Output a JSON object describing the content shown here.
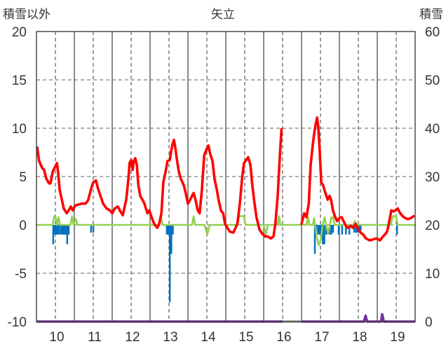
{
  "chart_data": {
    "type": "line",
    "title": "矢立",
    "ylabel": "積雪以外",
    "y2label": "積雪",
    "xlim": [
      9.5,
      19.5
    ],
    "ylim": [
      -10,
      20
    ],
    "y2lim": [
      0,
      60
    ],
    "x_ticks": [
      10,
      11,
      12,
      13,
      14,
      15,
      16,
      17,
      18,
      19
    ],
    "y_ticks": [
      20,
      15,
      10,
      5,
      0,
      -5,
      -10
    ],
    "y2_ticks": [
      60,
      50,
      40,
      30,
      20,
      10,
      0
    ],
    "grid": true,
    "series": [
      {
        "color": "#92d050",
        "points": [
          [
            9.5,
            0
          ],
          [
            9.93,
            0
          ],
          [
            9.97,
            0.9
          ],
          [
            10.0,
            0.9
          ],
          [
            10.04,
            0
          ],
          [
            10.08,
            0.8
          ],
          [
            10.12,
            0
          ],
          [
            10.4,
            0
          ],
          [
            10.44,
            0.9
          ],
          [
            10.48,
            0
          ],
          [
            10.54,
            0.6
          ],
          [
            10.58,
            0
          ],
          [
            12.75,
            0
          ],
          [
            12.79,
            0.9
          ],
          [
            12.83,
            0
          ],
          [
            13.61,
            0
          ],
          [
            13.65,
            0.9
          ],
          [
            13.69,
            0
          ],
          [
            13.94,
            0
          ],
          [
            14.01,
            -1.0
          ],
          [
            14.08,
            0
          ],
          [
            14.81,
            0
          ],
          [
            14.85,
            0.9
          ],
          [
            14.98,
            0.9
          ],
          [
            15.02,
            0
          ],
          [
            15.5,
            0
          ],
          [
            15.56,
            -1.0
          ],
          [
            15.61,
            0
          ],
          [
            15.87,
            0
          ],
          [
            15.91,
            0.9
          ],
          [
            15.94,
            0
          ],
          [
            16.63,
            0
          ],
          [
            16.67,
            0.8
          ],
          [
            16.71,
            0
          ],
          [
            16.8,
            0
          ],
          [
            16.83,
            0.7
          ],
          [
            16.86,
            0
          ],
          [
            16.9,
            -1.2
          ],
          [
            16.95,
            -2.1
          ],
          [
            17.01,
            -1.5
          ],
          [
            17.06,
            0
          ],
          [
            17.11,
            0.8
          ],
          [
            17.15,
            0
          ],
          [
            17.2,
            -0.9
          ],
          [
            17.25,
            0
          ],
          [
            17.29,
            0.8
          ],
          [
            17.33,
            0.8
          ],
          [
            17.38,
            0
          ],
          [
            17.88,
            0
          ],
          [
            17.91,
            0.4
          ],
          [
            17.94,
            0
          ],
          [
            18.86,
            0
          ],
          [
            18.91,
            0.9
          ],
          [
            19.0,
            0.9
          ],
          [
            19.04,
            0
          ],
          [
            19.5,
            0
          ]
        ]
      },
      {
        "color": "#ff0000",
        "points": [
          [
            9.52,
            8.0
          ],
          [
            9.57,
            6.6
          ],
          [
            9.65,
            5.9
          ],
          [
            9.7,
            5.7
          ],
          [
            9.76,
            4.8
          ],
          [
            9.83,
            4.3
          ],
          [
            9.87,
            4.3
          ],
          [
            9.93,
            5.5
          ],
          [
            9.98,
            5.9
          ],
          [
            10.04,
            6.4
          ],
          [
            10.07,
            5.5
          ],
          [
            10.11,
            3.7
          ],
          [
            10.17,
            2.6
          ],
          [
            10.22,
            1.7
          ],
          [
            10.3,
            1.2
          ],
          [
            10.35,
            1.5
          ],
          [
            10.41,
            1.9
          ],
          [
            10.46,
            1.5
          ],
          [
            10.52,
            2.0
          ],
          [
            10.61,
            2.1
          ],
          [
            10.7,
            2.2
          ],
          [
            10.8,
            2.2
          ],
          [
            10.87,
            2.6
          ],
          [
            10.94,
            3.7
          ],
          [
            11.0,
            4.4
          ],
          [
            11.07,
            4.6
          ],
          [
            11.13,
            3.7
          ],
          [
            11.19,
            3.0
          ],
          [
            11.26,
            2.2
          ],
          [
            11.35,
            1.7
          ],
          [
            11.44,
            1.5
          ],
          [
            11.5,
            1.2
          ],
          [
            11.57,
            1.7
          ],
          [
            11.65,
            1.9
          ],
          [
            11.7,
            1.5
          ],
          [
            11.78,
            1.0
          ],
          [
            11.83,
            1.9
          ],
          [
            11.87,
            2.6
          ],
          [
            11.93,
            4.8
          ],
          [
            11.96,
            6.4
          ],
          [
            12.0,
            6.7
          ],
          [
            12.04,
            5.7
          ],
          [
            12.07,
            6.6
          ],
          [
            12.11,
            6.9
          ],
          [
            12.15,
            6.2
          ],
          [
            12.19,
            4.1
          ],
          [
            12.24,
            3.0
          ],
          [
            12.3,
            2.6
          ],
          [
            12.35,
            2.2
          ],
          [
            12.43,
            1.2
          ],
          [
            12.48,
            1.5
          ],
          [
            12.54,
            0.8
          ],
          [
            12.61,
            0.1
          ],
          [
            12.69,
            -0.3
          ],
          [
            12.74,
            0.1
          ],
          [
            12.8,
            1.2
          ],
          [
            12.85,
            4.4
          ],
          [
            12.91,
            5.5
          ],
          [
            12.96,
            6.6
          ],
          [
            13.02,
            6.7
          ],
          [
            13.06,
            7.7
          ],
          [
            13.09,
            8.3
          ],
          [
            13.13,
            8.8
          ],
          [
            13.17,
            7.9
          ],
          [
            13.2,
            7.0
          ],
          [
            13.26,
            5.5
          ],
          [
            13.31,
            4.8
          ],
          [
            13.39,
            4.1
          ],
          [
            13.44,
            3.3
          ],
          [
            13.5,
            2.2
          ],
          [
            13.56,
            2.6
          ],
          [
            13.61,
            3.0
          ],
          [
            13.65,
            3.3
          ],
          [
            13.7,
            2.6
          ],
          [
            13.76,
            1.5
          ],
          [
            13.81,
            1.2
          ],
          [
            13.87,
            3.7
          ],
          [
            13.93,
            7.2
          ],
          [
            13.98,
            7.7
          ],
          [
            14.04,
            8.2
          ],
          [
            14.09,
            7.3
          ],
          [
            14.15,
            6.6
          ],
          [
            14.2,
            4.8
          ],
          [
            14.26,
            3.7
          ],
          [
            14.31,
            2.6
          ],
          [
            14.37,
            1.5
          ],
          [
            14.43,
            1.2
          ],
          [
            14.48,
            0.1
          ],
          [
            14.54,
            -0.3
          ],
          [
            14.61,
            -0.7
          ],
          [
            14.7,
            -0.8
          ],
          [
            14.76,
            -0.3
          ],
          [
            14.81,
            0.2
          ],
          [
            14.87,
            2.2
          ],
          [
            14.93,
            4.8
          ],
          [
            14.98,
            6.4
          ],
          [
            15.04,
            6.7
          ],
          [
            15.09,
            7.0
          ],
          [
            15.15,
            6.2
          ],
          [
            15.2,
            4.1
          ],
          [
            15.26,
            2.2
          ],
          [
            15.31,
            0.8
          ],
          [
            15.39,
            -0.5
          ],
          [
            15.46,
            -0.9
          ],
          [
            15.54,
            -1.2
          ],
          [
            15.61,
            -1.2
          ],
          [
            15.69,
            -1.4
          ],
          [
            15.76,
            -1.2
          ],
          [
            15.81,
            0.1
          ],
          [
            15.87,
            3.0
          ],
          [
            15.93,
            7.3
          ],
          [
            15.97,
            9.9
          ],
          [
            16.2,
            null
          ],
          [
            16.5,
            0.1
          ],
          [
            16.57,
            1.2
          ],
          [
            16.63,
            0.8
          ],
          [
            16.69,
            2.2
          ],
          [
            16.74,
            6.2
          ],
          [
            16.8,
            8.4
          ],
          [
            16.85,
            9.9
          ],
          [
            16.91,
            11.1
          ],
          [
            16.94,
            10.2
          ],
          [
            16.98,
            7.7
          ],
          [
            17.02,
            4.4
          ],
          [
            17.07,
            4.1
          ],
          [
            17.13,
            3.3
          ],
          [
            17.19,
            2.6
          ],
          [
            17.24,
            3.0
          ],
          [
            17.28,
            2.6
          ],
          [
            17.33,
            1.5
          ],
          [
            17.39,
            0.8
          ],
          [
            17.44,
            0.4
          ],
          [
            17.5,
            0.7
          ],
          [
            17.56,
            0.8
          ],
          [
            17.61,
            0.4
          ],
          [
            17.67,
            -0.1
          ],
          [
            17.72,
            -0.3
          ],
          [
            17.8,
            -0.1
          ],
          [
            17.85,
            -0.3
          ],
          [
            17.93,
            0.1
          ],
          [
            17.98,
            -0.3
          ],
          [
            18.06,
            -0.8
          ],
          [
            18.13,
            -1.0
          ],
          [
            18.2,
            -1.4
          ],
          [
            18.3,
            -1.6
          ],
          [
            18.39,
            -1.5
          ],
          [
            18.48,
            -1.4
          ],
          [
            18.57,
            -1.6
          ],
          [
            18.65,
            -1.2
          ],
          [
            18.7,
            -1.0
          ],
          [
            18.76,
            -0.7
          ],
          [
            18.81,
            0.2
          ],
          [
            18.87,
            1.5
          ],
          [
            18.93,
            1.4
          ],
          [
            18.98,
            1.5
          ],
          [
            19.04,
            1.7
          ],
          [
            19.09,
            1.3
          ],
          [
            19.17,
            0.9
          ],
          [
            19.24,
            0.7
          ],
          [
            19.31,
            0.6
          ],
          [
            19.39,
            0.7
          ],
          [
            19.46,
            0.9
          ]
        ]
      }
    ],
    "bar_series": {
      "color": "#0070c0",
      "points": [
        [
          9.94,
          -2.0
        ],
        [
          9.98,
          -1.0
        ],
        [
          10.02,
          -1.0
        ],
        [
          10.06,
          -1.0
        ],
        [
          10.1,
          -1.0
        ],
        [
          10.15,
          -1.0
        ],
        [
          10.19,
          -1.0
        ],
        [
          10.23,
          -1.0
        ],
        [
          10.27,
          -1.0
        ],
        [
          10.31,
          -2.0
        ],
        [
          10.35,
          -1.0
        ],
        [
          10.94,
          -0.8
        ],
        [
          11.0,
          -0.8
        ],
        [
          12.94,
          -1.0
        ],
        [
          12.98,
          -1.0
        ],
        [
          13.02,
          -8.0
        ],
        [
          13.06,
          -3.0
        ],
        [
          13.1,
          -1.0
        ],
        [
          16.85,
          -3.0
        ],
        [
          16.89,
          -1.0
        ],
        [
          16.94,
          -1.0
        ],
        [
          16.98,
          -1.0
        ],
        [
          17.02,
          -1.0
        ],
        [
          17.06,
          -2.0
        ],
        [
          17.1,
          -2.0
        ],
        [
          17.15,
          -1.0
        ],
        [
          17.24,
          -1.0
        ],
        [
          17.29,
          -1.0
        ],
        [
          17.33,
          -0.8
        ],
        [
          17.48,
          -1.0
        ],
        [
          17.57,
          -1.0
        ],
        [
          17.67,
          -1.0
        ],
        [
          17.76,
          -1.0
        ],
        [
          17.89,
          -0.8
        ],
        [
          17.94,
          -0.8
        ],
        [
          17.98,
          -0.8
        ],
        [
          18.02,
          -0.8
        ],
        [
          18.06,
          -0.6
        ],
        [
          19.02,
          -1.0
        ]
      ]
    },
    "y2_series": [
      {
        "color": "#7030a0",
        "points": [
          [
            9.5,
            0
          ],
          [
            16.0,
            0
          ],
          [
            16.2,
            null
          ],
          [
            16.5,
            0
          ],
          [
            18.15,
            0
          ],
          [
            18.19,
            1.2
          ],
          [
            18.23,
            0
          ],
          [
            18.6,
            0
          ],
          [
            18.63,
            1.5
          ],
          [
            18.67,
            0
          ],
          [
            19.5,
            0
          ]
        ]
      }
    ],
    "missing": {
      "color": "#a6a6a6",
      "ranges": [
        [
          16.0,
          16.5
        ]
      ]
    }
  }
}
